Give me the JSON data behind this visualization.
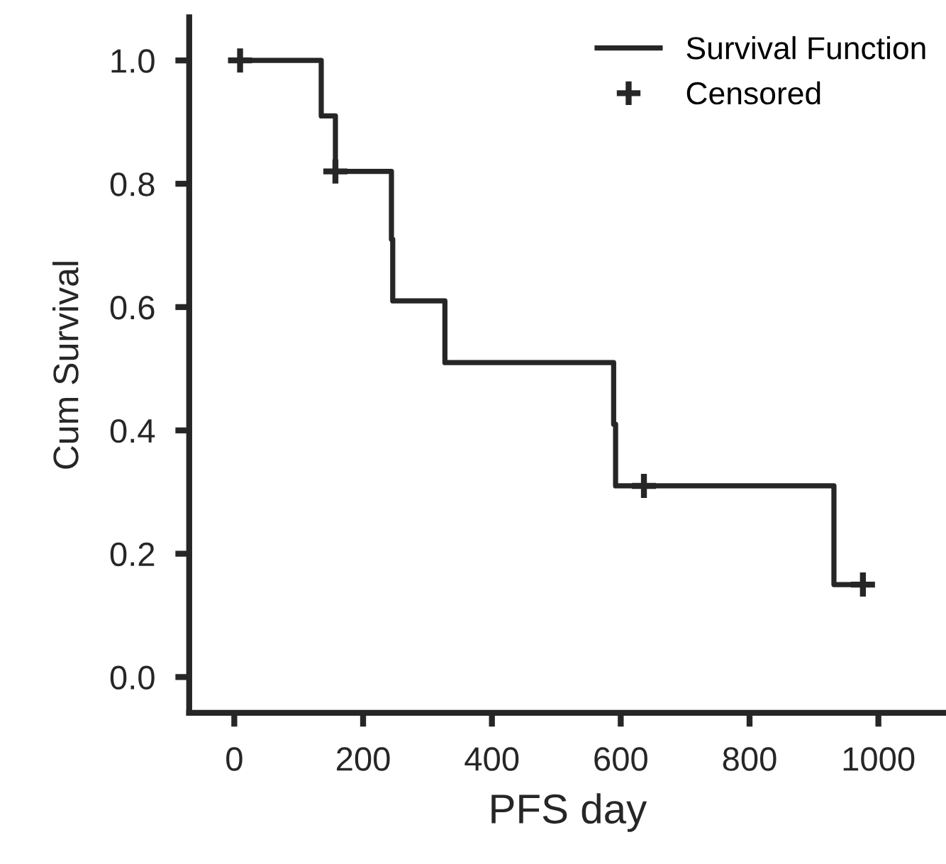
{
  "chart_data": {
    "type": "step",
    "xlabel": "PFS day",
    "ylabel": "Cum Survival",
    "xlim": [
      -70,
      1105
    ],
    "ylim": [
      -0.058,
      1.07
    ],
    "xticks": [
      0,
      200,
      400,
      600,
      800,
      1000
    ],
    "yticks": [
      {
        "value": 0,
        "label": "0.0"
      },
      {
        "value": 0.2,
        "label": "0.2"
      },
      {
        "value": 0.4,
        "label": "0.4"
      },
      {
        "value": 0.6,
        "label": "0.6"
      },
      {
        "value": 0.8,
        "label": "0.8"
      },
      {
        "value": 1,
        "label": "1.0"
      }
    ],
    "grid": false,
    "legend": "top right",
    "series": [
      {
        "name": "Survival Function",
        "color": "#262626",
        "x": [
          0,
          135,
          157,
          244,
          246,
          327,
          589,
          592,
          931,
          976
        ],
        "values": [
          1.0,
          0.91,
          0.82,
          0.71,
          0.61,
          0.51,
          0.41,
          0.31,
          0.15,
          0.15
        ],
        "marker": "none",
        "line_style": "solid"
      },
      {
        "name": "Censored",
        "type": "scatter",
        "color": "#262626",
        "x": [
          9,
          157,
          636,
          976
        ],
        "values": [
          1.0,
          0.82,
          0.31,
          0.15
        ],
        "marker": "cross"
      }
    ]
  }
}
